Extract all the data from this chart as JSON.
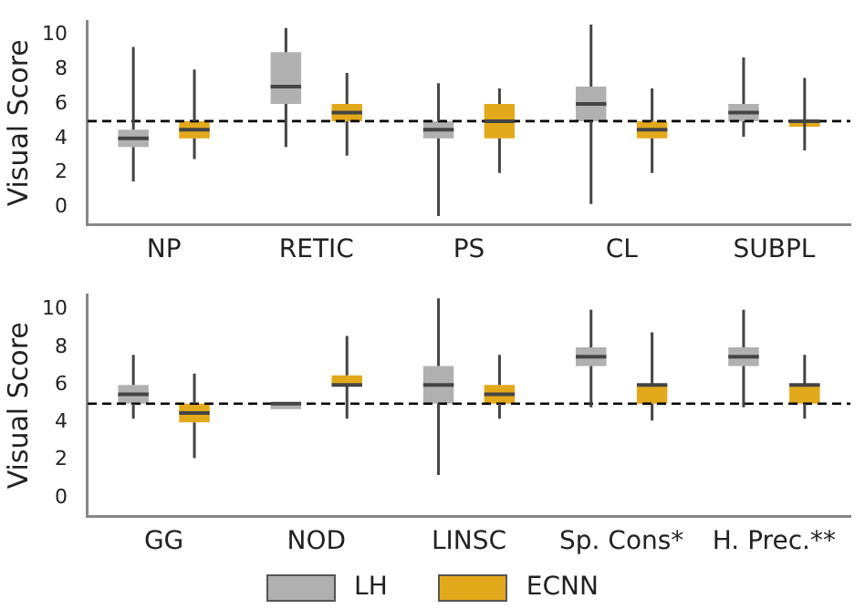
{
  "chart_data": [
    {
      "type": "box",
      "ylabel": "Visual Score",
      "categories": [
        "NP",
        "RETIC",
        "PS",
        "CL",
        "SUBPL"
      ],
      "ylim": [
        -1,
        10.8
      ],
      "yticks": [
        0,
        2,
        4,
        6,
        8,
        10
      ],
      "grid": false,
      "legend": "bottom",
      "ref_lines": [
        {
          "axis": "y",
          "value": 5,
          "color": "#000000",
          "line_style": "dashed"
        }
      ],
      "series": [
        {
          "name": "LH",
          "color": "#b0b0b0",
          "boxes": [
            {
              "low": 1.5,
              "q1": 3.5,
              "median": 4,
              "q3": 4.5,
              "high": 9.3
            },
            {
              "low": 3.5,
              "q1": 6,
              "median": 7,
              "q3": 9,
              "high": 10.4
            },
            {
              "low": -0.5,
              "q1": 4,
              "median": 4.5,
              "q3": 5,
              "high": 7.2
            },
            {
              "low": 0.2,
              "q1": 5,
              "median": 6,
              "q3": 7,
              "high": 10.6
            },
            {
              "low": 4.1,
              "q1": 5,
              "median": 5.5,
              "q3": 6,
              "high": 8.7
            }
          ]
        },
        {
          "name": "ECNN",
          "color": "#e2a91b",
          "boxes": [
            {
              "low": 2.8,
              "q1": 4,
              "median": 4.5,
              "q3": 5,
              "high": 8
            },
            {
              "low": 3,
              "q1": 5,
              "median": 5.5,
              "q3": 6,
              "high": 7.8
            },
            {
              "low": 2,
              "q1": 4,
              "median": 5,
              "q3": 6,
              "high": 6.9
            },
            {
              "low": 2,
              "q1": 4,
              "median": 4.5,
              "q3": 5,
              "high": 6.9
            },
            {
              "low": 3.3,
              "q1": 5,
              "median": 5,
              "q3": 5,
              "high": 7.5
            }
          ]
        }
      ]
    },
    {
      "type": "box",
      "ylabel": "Visual Score",
      "categories": [
        "GG",
        "NOD",
        "LINSC",
        "Sp. Cons*",
        "H. Prec.**"
      ],
      "ylim": [
        -1,
        10.8
      ],
      "yticks": [
        0,
        2,
        4,
        6,
        8,
        10
      ],
      "grid": false,
      "legend": "bottom",
      "ref_lines": [
        {
          "axis": "y",
          "value": 5,
          "color": "#000000",
          "line_style": "dashed"
        }
      ],
      "series": [
        {
          "name": "LH",
          "color": "#b0b0b0",
          "boxes": [
            {
              "low": 4.2,
              "q1": 5,
              "median": 5.5,
              "q3": 6,
              "high": 7.6
            },
            {
              "low": 5,
              "q1": 5,
              "median": 5,
              "q3": 5,
              "high": 5
            },
            {
              "low": 1.2,
              "q1": 5,
              "median": 6,
              "q3": 7,
              "high": 10.6
            },
            {
              "low": 4.8,
              "q1": 7,
              "median": 7.5,
              "q3": 8,
              "high": 10
            },
            {
              "low": 4.8,
              "q1": 7,
              "median": 7.5,
              "q3": 8,
              "high": 10
            }
          ]
        },
        {
          "name": "ECNN",
          "color": "#e2a91b",
          "boxes": [
            {
              "low": 2.1,
              "q1": 4,
              "median": 4.5,
              "q3": 5,
              "high": 6.6
            },
            {
              "low": 4.2,
              "q1": 6,
              "median": 6,
              "q3": 6.5,
              "high": 8.6
            },
            {
              "low": 4.2,
              "q1": 5,
              "median": 5.5,
              "q3": 6,
              "high": 7.6
            },
            {
              "low": 4.1,
              "q1": 5,
              "median": 6,
              "q3": 6,
              "high": 8.8
            },
            {
              "low": 4.2,
              "q1": 5,
              "median": 6,
              "q3": 6,
              "high": 7.6
            }
          ]
        }
      ]
    }
  ]
}
